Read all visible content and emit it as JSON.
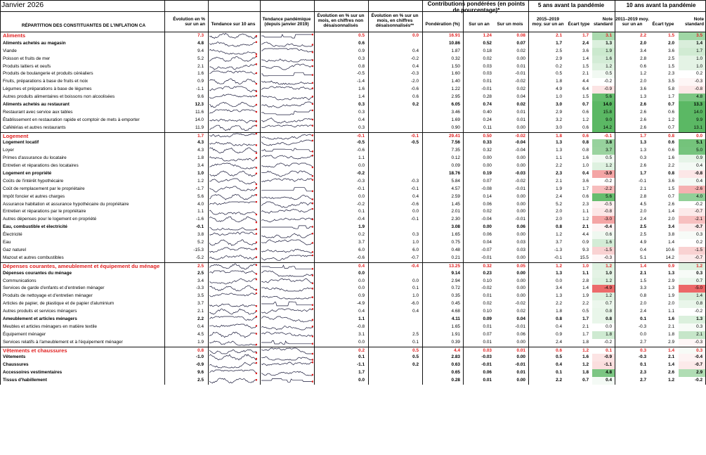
{
  "page": {
    "date": "Janvier 2026"
  },
  "headers": {
    "category": "RÉPARTITION DES CONSTITUANTES DE L'INFLATION CA",
    "yoy": "Évolution en % sur un an",
    "trend10": "Tendance sur 10 ans",
    "pandemic": "Tendance pandémique (depuis janvier 2019)",
    "mom_nsa": "Évolution en % sur un mois, en chiffres non désaisonnalisés",
    "mom_sa": "Évolution en % sur un mois, en chiffres désaisonnalisés**",
    "contrib_group": "Contributions pondérées (en points de pourcentage)*",
    "weight": "Pondération (%)",
    "contrib_yoy": "Sur un an",
    "contrib_mom": "Sur un mois",
    "g5": "5 ans avant la pandémie",
    "g10": "10 ans avant la pandémie",
    "avg5": "2015–2019 moy. sur un an",
    "sd5": "Écart type",
    "note5": "Note standard",
    "avg10": "2011–2019 moy. sur un an",
    "sd10": "Écart type",
    "note10": "Note standard"
  },
  "colors": {
    "red_text": "#e01e1e",
    "grid": "#111111",
    "note_red": "#e84a4a",
    "note_green": "#5bb864",
    "spark_marker": "#e01e1e"
  },
  "rows": [
    {
      "label": "Aliments",
      "level": 1,
      "yoy": "7.3",
      "mom": "0.5",
      "sa": "0.0",
      "w": "16.91",
      "cy": "1.24",
      "cm": "0.08",
      "a5": "2.1",
      "s5": "1.7",
      "n5": "3.1",
      "a10": "2.2",
      "s10": "1.5",
      "n10": "3.5",
      "z5": 3.1,
      "z10": 3.5
    },
    {
      "label": "Aliments achetés au magasin",
      "level": 2,
      "yoy": "4.8",
      "mom": "0.6",
      "sa": "",
      "w": "10.86",
      "cy": "0.52",
      "cm": "0.07",
      "a5": "1.7",
      "s5": "2.4",
      "n5": "1.3",
      "a10": "2.0",
      "s10": "2.0",
      "n10": "1.4",
      "z5": 1.3,
      "z10": 1.4
    },
    {
      "label": "Viande",
      "level": 3,
      "yoy": "9.4",
      "mom": "0.9",
      "sa": "0.4",
      "w": "1.87",
      "cy": "0.18",
      "cm": "0.02",
      "a5": "2.5",
      "s5": "3.6",
      "n5": "1.9",
      "a10": "3.4",
      "s10": "3.6",
      "n10": "1.7",
      "z5": 1.9,
      "z10": 1.7
    },
    {
      "label": "Poisson et fruits de mer",
      "level": 3,
      "yoy": "5.2",
      "mom": "0.3",
      "sa": "-0.2",
      "w": "0.32",
      "cy": "0.02",
      "cm": "0.00",
      "a5": "2.9",
      "s5": "1.4",
      "n5": "1.6",
      "a10": "2.8",
      "s10": "2.5",
      "n10": "1.0",
      "z5": 1.6,
      "z10": 1.0
    },
    {
      "label": "Produits laitiers et oeufs",
      "level": 3,
      "yoy": "2.1",
      "mom": "0.8",
      "sa": "0.4",
      "w": "1.50",
      "cy": "0.03",
      "cm": "0.01",
      "a5": "0.2",
      "s5": "1.5",
      "n5": "1.2",
      "a10": "0.6",
      "s10": "1.5",
      "n10": "1.0",
      "z5": 1.2,
      "z10": 1.0
    },
    {
      "label": "Produits de boulangerie et produits céréaliers",
      "level": 3,
      "yoy": "1.6",
      "mom": "-0.5",
      "sa": "-0.3",
      "w": "1.60",
      "cy": "0.03",
      "cm": "-0.01",
      "a5": "0.5",
      "s5": "2.1",
      "n5": "0.5",
      "a10": "1.2",
      "s10": "2.3",
      "n10": "0.2",
      "z5": 0.5,
      "z10": 0.2
    },
    {
      "label": "Fruits, préparations à base de fruits et noix",
      "level": 3,
      "yoy": "0.9",
      "mom": "-1.4",
      "sa": "-2.0",
      "w": "1.40",
      "cy": "0.01",
      "cm": "-0.02",
      "a5": "1.8",
      "s5": "4.4",
      "n5": "-0.2",
      "a10": "2.0",
      "s10": "3.5",
      "n10": "-0.3",
      "z5": -0.2,
      "z10": -0.3
    },
    {
      "label": "Légumes et préparations à base de légumes",
      "level": 3,
      "yoy": "-1.1",
      "mom": "1.6",
      "sa": "-0.6",
      "w": "1.22",
      "cy": "-0.01",
      "cm": "0.02",
      "a5": "4.9",
      "s5": "6.4",
      "n5": "-0.9",
      "a10": "3.6",
      "s10": "5.8",
      "n10": "-0.8",
      "z5": -0.9,
      "z10": -0.8
    },
    {
      "label": "Autres produits alimentaires et boissons non alcoolisées",
      "level": 3,
      "yoy": "9.6",
      "mom": "1.4",
      "sa": "0.6",
      "w": "2.95",
      "cy": "0.28",
      "cm": "0.04",
      "a5": "1.0",
      "s5": "1.5",
      "n5": "5.6",
      "a10": "1.3",
      "s10": "1.7",
      "n10": "4.8",
      "z5": 5.6,
      "z10": 4.8
    },
    {
      "label": "Aliments achetés au restaurant",
      "level": 2,
      "yoy": "12.3",
      "mom": "0.3",
      "sa": "0.2",
      "w": "6.05",
      "cy": "0.74",
      "cm": "0.02",
      "a5": "3.0",
      "s5": "0.7",
      "n5": "14.0",
      "a10": "2.6",
      "s10": "0.7",
      "n10": "13.3",
      "z5": 14.0,
      "z10": 13.3
    },
    {
      "label": "Restaurant avec service aux tables",
      "level": 3,
      "yoy": "11.6",
      "mom": "0.3",
      "sa": "",
      "w": "3.46",
      "cy": "0.40",
      "cm": "0.01",
      "a5": "2.9",
      "s5": "0.6",
      "n5": "15.8",
      "a10": "2.6",
      "s10": "0.6",
      "n10": "14.0",
      "z5": 15.8,
      "z10": 14.0
    },
    {
      "label": "Établissement en restauration rapide et comptoir de mets à emporter",
      "level": 3,
      "yoy": "14.0",
      "mom": "0.4",
      "sa": "",
      "w": "1.69",
      "cy": "0.24",
      "cm": "0.01",
      "a5": "3.2",
      "s5": "1.2",
      "n5": "9.0",
      "a10": "2.6",
      "s10": "1.2",
      "n10": "9.9",
      "z5": 9.0,
      "z10": 9.9
    },
    {
      "label": "Cafétérias et autres restaurants",
      "level": 3,
      "yoy": "11.9",
      "mom": "0.3",
      "sa": "",
      "w": "0.90",
      "cy": "0.11",
      "cm": "0.00",
      "a5": "3.0",
      "s5": "0.6",
      "n5": "14.2",
      "a10": "2.6",
      "s10": "0.7",
      "n10": "13.1",
      "z5": 14.2,
      "z10": 13.1
    },
    {
      "label": "Logement",
      "level": 1,
      "yoy": "1.7",
      "mom": "-0.1",
      "sa": "-0.1",
      "w": "29.41",
      "cy": "0.50",
      "cm": "-0.02",
      "a5": "1.8",
      "s5": "0.6",
      "n5": "-0.1",
      "a10": "1.7",
      "s10": "0.8",
      "n10": "0.0",
      "z5": -0.1,
      "z10": 0.0
    },
    {
      "label": "Logement locatif",
      "level": 2,
      "yoy": "4.3",
      "mom": "-0.5",
      "sa": "-0.5",
      "w": "7.56",
      "cy": "0.33",
      "cm": "-0.04",
      "a5": "1.3",
      "s5": "0.8",
      "n5": "3.8",
      "a10": "1.3",
      "s10": "0.6",
      "n10": "5.1",
      "z5": 3.8,
      "z10": 5.1
    },
    {
      "label": "Loyer",
      "level": 3,
      "yoy": "4.3",
      "mom": "-0.6",
      "sa": "",
      "w": "7.35",
      "cy": "0.32",
      "cm": "-0.04",
      "a5": "1.3",
      "s5": "0.8",
      "n5": "3.7",
      "a10": "1.3",
      "s10": "0.6",
      "n10": "5.0",
      "z5": 3.7,
      "z10": 5.0
    },
    {
      "label": "Primes d'assurance du locataire",
      "level": 3,
      "yoy": "1.8",
      "mom": "1.1",
      "sa": "",
      "w": "0.12",
      "cy": "0.00",
      "cm": "0.00",
      "a5": "1.1",
      "s5": "1.6",
      "n5": "0.5",
      "a10": "0.3",
      "s10": "1.6",
      "n10": "0.9",
      "z5": 0.5,
      "z10": 0.9
    },
    {
      "label": "Entretien et réparations des locataires",
      "level": 3,
      "yoy": "3.4",
      "mom": "0.0",
      "sa": "",
      "w": "0.09",
      "cy": "0.00",
      "cm": "0.00",
      "a5": "2.2",
      "s5": "1.0",
      "n5": "1.2",
      "a10": "2.6",
      "s10": "2.2",
      "n10": "0.4",
      "z5": 1.2,
      "z10": 0.4
    },
    {
      "label": "Logement en propriété",
      "level": 2,
      "yoy": "1.0",
      "mom": "-0.2",
      "sa": "",
      "w": "18.76",
      "cy": "0.19",
      "cm": "-0.03",
      "a5": "2.3",
      "s5": "0.4",
      "n5": "-3.0",
      "a10": "1.7",
      "s10": "0.8",
      "n10": "-0.8",
      "z5": -3.0,
      "z10": -0.8
    },
    {
      "label": "Coûts de l'intérêt hypothécaire",
      "level": 3,
      "yoy": "1.2",
      "mom": "-0.3",
      "sa": "-0.3",
      "w": "5.84",
      "cy": "0.07",
      "cm": "-0.02",
      "a5": "2.1",
      "s5": "3.6",
      "n5": "-0.2",
      "a10": "-0.1",
      "s10": "3.6",
      "n10": "0.4",
      "z5": -0.2,
      "z10": 0.4
    },
    {
      "label": "Coût de remplacement par le propriétaire",
      "level": 3,
      "yoy": "-1.7",
      "mom": "-0.1",
      "sa": "-0.1",
      "w": "4.57",
      "cy": "-0.08",
      "cm": "-0.01",
      "a5": "1.9",
      "s5": "1.7",
      "n5": "-2.2",
      "a10": "2.1",
      "s10": "1.5",
      "n10": "-2.6",
      "z5": -2.2,
      "z10": -2.6
    },
    {
      "label": "Impôt foncier et autres charges",
      "level": 3,
      "yoy": "5.6",
      "mom": "0.0",
      "sa": "0.4",
      "w": "2.59",
      "cy": "0.14",
      "cm": "0.00",
      "a5": "2.4",
      "s5": "0.6",
      "n5": "5.6",
      "a10": "2.8",
      "s10": "0.7",
      "n10": "4.0",
      "z5": 5.6,
      "z10": 4.0
    },
    {
      "label": "Assurance habitation et assurance hypothécaire du propriétaire",
      "level": 3,
      "yoy": "4.0",
      "mom": "-0.2",
      "sa": "-0.6",
      "w": "1.45",
      "cy": "0.06",
      "cm": "0.00",
      "a5": "5.2",
      "s5": "2.3",
      "n5": "-0.5",
      "a10": "4.5",
      "s10": "2.6",
      "n10": "-0.2",
      "z5": -0.5,
      "z10": -0.2
    },
    {
      "label": "Entretien et réparations par le propriétaire",
      "level": 3,
      "yoy": "1.1",
      "mom": "0.1",
      "sa": "0.0",
      "w": "2.01",
      "cy": "0.02",
      "cm": "0.00",
      "a5": "2.0",
      "s5": "1.1",
      "n5": "-0.8",
      "a10": "2.0",
      "s10": "1.4",
      "n10": "-0.7",
      "z5": -0.8,
      "z10": -0.7
    },
    {
      "label": "Autres dépenses pour le logement en propriété",
      "level": 3,
      "yoy": "-1.6",
      "mom": "-0.4",
      "sa": "-0.1",
      "w": "2.30",
      "cy": "-0.04",
      "cm": "-0.01",
      "a5": "2.0",
      "s5": "1.2",
      "n5": "-3.0",
      "a10": "2.4",
      "s10": "2.0",
      "n10": "-2.1",
      "z5": -3.0,
      "z10": -2.1
    },
    {
      "label": "Eau, combustible et électricité",
      "level": 2,
      "yoy": "-0.1",
      "mom": "1.9",
      "sa": "",
      "w": "3.08",
      "cy": "0.00",
      "cm": "0.06",
      "a5": "0.8",
      "s5": "2.1",
      "n5": "-0.4",
      "a10": "2.5",
      "s10": "3.4",
      "n10": "-0.7",
      "z5": -0.4,
      "z10": -0.7
    },
    {
      "label": "Électricité",
      "level": 3,
      "yoy": "3.8",
      "mom": "0.2",
      "sa": "0.3",
      "w": "1.65",
      "cy": "0.06",
      "cm": "0.00",
      "a5": "1.2",
      "s5": "4.4",
      "n5": "0.6",
      "a10": "2.5",
      "s10": "3.8",
      "n10": "0.3",
      "z5": 0.6,
      "z10": 0.3
    },
    {
      "label": "Eau",
      "level": 3,
      "yoy": "5.2",
      "mom": "3.7",
      "sa": "1.0",
      "w": "0.75",
      "cy": "0.04",
      "cm": "0.03",
      "a5": "3.7",
      "s5": "0.9",
      "n5": "1.6",
      "a10": "4.9",
      "s10": "1.4",
      "n10": "0.2",
      "z5": 1.6,
      "z10": 0.2
    },
    {
      "label": "Gaz naturel",
      "level": 3,
      "yoy": "-15.3",
      "mom": "6.0",
      "sa": "6.0",
      "w": "0.48",
      "cy": "-0.07",
      "cm": "0.03",
      "a5": "-1.3",
      "s5": "9.3",
      "n5": "-1.5",
      "a10": "0.4",
      "s10": "10.6",
      "n10": "-1.5",
      "z5": -1.5,
      "z10": -1.5
    },
    {
      "label": "Mazout et autres combustibles",
      "level": 3,
      "yoy": "-5.2",
      "mom": "-0.6",
      "sa": "-0.7",
      "w": "0.21",
      "cy": "-0.01",
      "cm": "0.00",
      "a5": "-0.1",
      "s5": "15.5",
      "n5": "-0.3",
      "a10": "5.1",
      "s10": "14.2",
      "n10": "-0.7",
      "z5": -0.3,
      "z10": -0.7
    },
    {
      "label": "Dépenses courantes, ameublement et équipement du ménage",
      "level": 1,
      "yoy": "2.5",
      "mom": "0.4",
      "sa": "-0.4",
      "w": "13.25",
      "cy": "0.32",
      "cm": "0.05",
      "a5": "1.2",
      "s5": "1.0",
      "n5": "1.2",
      "a10": "1.4",
      "s10": "0.9",
      "n10": "1.2",
      "z5": 1.2,
      "z10": 1.2
    },
    {
      "label": "Dépenses courantes du ménage",
      "level": 2,
      "yoy": "2.5",
      "mom": "0.0",
      "sa": "",
      "w": "9.14",
      "cy": "0.23",
      "cm": "0.00",
      "a5": "1.3",
      "s5": "1.1",
      "n5": "1.0",
      "a10": "2.1",
      "s10": "1.3",
      "n10": "0.3",
      "z5": 1.0,
      "z10": 0.3
    },
    {
      "label": "Communications",
      "level": 3,
      "yoy": "3.4",
      "mom": "0.0",
      "sa": "0.0",
      "w": "2.94",
      "cy": "0.10",
      "cm": "0.00",
      "a5": "0.0",
      "s5": "2.8",
      "n5": "1.2",
      "a10": "1.5",
      "s10": "2.9",
      "n10": "0.7",
      "z5": 1.2,
      "z10": 0.7
    },
    {
      "label": "Services de garde d'enfants et d'entretien ménager",
      "level": 3,
      "yoy": "-3.3",
      "mom": "0.0",
      "sa": "0.1",
      "w": "0.72",
      "cy": "-0.02",
      "cm": "0.00",
      "a5": "3.4",
      "s5": "1.4",
      "n5": "-4.9",
      "a10": "3.3",
      "s10": "1.3",
      "n10": "-5.0",
      "z5": -4.9,
      "z10": -5.0
    },
    {
      "label": "Produits de nettoyage et d'entretien ménager",
      "level": 3,
      "yoy": "3.5",
      "mom": "0.9",
      "sa": "1.0",
      "w": "0.35",
      "cy": "0.01",
      "cm": "0.00",
      "a5": "1.3",
      "s5": "1.9",
      "n5": "1.2",
      "a10": "0.8",
      "s10": "1.9",
      "n10": "1.4",
      "z5": 1.2,
      "z10": 1.4
    },
    {
      "label": "Articles de papier, de plastique et de papier d'aluminium",
      "level": 3,
      "yoy": "3.7",
      "mom": "-4.9",
      "sa": "-6.0",
      "w": "0.45",
      "cy": "0.02",
      "cm": "-0.02",
      "a5": "2.2",
      "s5": "2.2",
      "n5": "0.7",
      "a10": "2.0",
      "s10": "2.0",
      "n10": "0.8",
      "z5": 0.7,
      "z10": 0.8
    },
    {
      "label": "Autres produits et services ménagers",
      "level": 3,
      "yoy": "2.1",
      "mom": "0.4",
      "sa": "0.4",
      "w": "4.68",
      "cy": "0.10",
      "cm": "0.02",
      "a5": "1.8",
      "s5": "0.5",
      "n5": "0.8",
      "a10": "2.4",
      "s10": "1.1",
      "n10": "-0.2",
      "z5": 0.8,
      "z10": -0.2
    },
    {
      "label": "Ameublement et articles ménagers",
      "level": 2,
      "yoy": "2.2",
      "mom": "1.1",
      "sa": "",
      "w": "4.11",
      "cy": "0.09",
      "cm": "0.04",
      "a5": "0.8",
      "s5": "1.7",
      "n5": "0.8",
      "a10": "0.1",
      "s10": "1.6",
      "n10": "1.3",
      "z5": 0.8,
      "z10": 1.3
    },
    {
      "label": "Meubles et articles ménagers en matière textile",
      "level": 3,
      "yoy": "0.4",
      "mom": "-0.8",
      "sa": "",
      "w": "1.65",
      "cy": "0.01",
      "cm": "-0.01",
      "a5": "0.4",
      "s5": "2.1",
      "n5": "0.0",
      "a10": "-0.3",
      "s10": "2.1",
      "n10": "0.3",
      "z5": 0.0,
      "z10": 0.3
    },
    {
      "label": "Équipement ménager",
      "level": 3,
      "yoy": "4.5",
      "mom": "3.1",
      "sa": "2.5",
      "w": "1.91",
      "cy": "0.07",
      "cm": "0.06",
      "a5": "0.9",
      "s5": "1.7",
      "n5": "1.8",
      "a10": "0.0",
      "s10": "1.8",
      "n10": "2.1",
      "z5": 1.8,
      "z10": 2.1
    },
    {
      "label": "Services relatifs à l'ameublement et à l'équipement ménager",
      "level": 3,
      "yoy": "1.9",
      "mom": "0.0",
      "sa": "0.1",
      "w": "0.39",
      "cy": "0.01",
      "cm": "0.00",
      "a5": "2.4",
      "s5": "1.8",
      "n5": "-0.2",
      "a10": "2.7",
      "s10": "2.9",
      "n10": "-0.3",
      "z5": -0.2,
      "z10": -0.3
    },
    {
      "label": "Vêtements et chaussures",
      "level": 1,
      "yoy": "0.8",
      "mom": "0.2",
      "sa": "0.5",
      "w": "4.4",
      "cy": "0.03",
      "cm": "0.01",
      "a5": "0.6",
      "s5": "1.2",
      "n5": "0.1",
      "a10": "0.3",
      "s10": "1.4",
      "n10": "0.3",
      "z5": 0.1,
      "z10": 0.3
    },
    {
      "label": "Vêtements",
      "level": 2,
      "yoy": "-1.0",
      "mom": "0.1",
      "sa": "0.5",
      "w": "2.83",
      "cy": "-0.03",
      "cm": "0.00",
      "a5": "0.5",
      "s5": "1.6",
      "n5": "-0.9",
      "a10": "-0.3",
      "s10": "2.1",
      "n10": "-0.4",
      "z5": -0.9,
      "z10": -0.4
    },
    {
      "label": "Chaussures",
      "level": 2,
      "yoy": "-0.9",
      "mom": "-1.1",
      "sa": "0.2",
      "w": "0.63",
      "cy": "-0.01",
      "cm": "-0.01",
      "a5": "0.4",
      "s5": "1.2",
      "n5": "-1.1",
      "a10": "0.1",
      "s10": "1.4",
      "n10": "-0.7",
      "z5": -1.1,
      "z10": -0.7
    },
    {
      "label": "Accessoires vestimentaires",
      "level": 2,
      "yoy": "9.6",
      "mom": "1.7",
      "sa": "",
      "w": "0.65",
      "cy": "0.06",
      "cm": "0.01",
      "a5": "0.1",
      "s5": "1.8",
      "n5": "4.8",
      "a10": "2.3",
      "s10": "2.6",
      "n10": "2.9",
      "z5": 4.8,
      "z10": 2.9
    },
    {
      "label": "Tissus d'habillement",
      "level": 2,
      "yoy": "2.5",
      "mom": "0.0",
      "sa": "",
      "w": "0.28",
      "cy": "0.01",
      "cm": "0.00",
      "a5": "2.2",
      "s5": "0.7",
      "n5": "0.4",
      "a10": "2.7",
      "s10": "1.2",
      "n10": "-0.2",
      "z5": 0.4,
      "z10": -0.2
    }
  ]
}
